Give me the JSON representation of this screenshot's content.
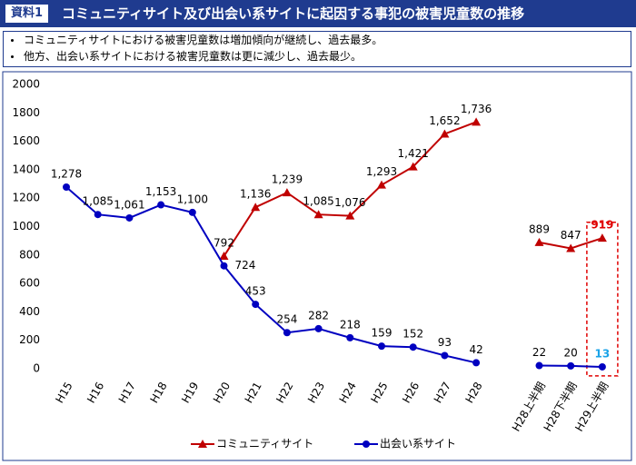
{
  "header": {
    "badge": "資料1",
    "title": "コミュニティサイト及び出会い系サイトに起因する事犯の被害児童数の推移"
  },
  "notes": [
    "コミュニティサイトにおける被害児童数は増加傾向が継続し、過去最多。",
    "他方、出会い系サイトにおける被害児童数は更に減少し、過去最少。"
  ],
  "chart_data": {
    "type": "line",
    "categories": [
      "H15",
      "H16",
      "H17",
      "H18",
      "H19",
      "H20",
      "H21",
      "H22",
      "H23",
      "H24",
      "H25",
      "H26",
      "H27",
      "H28",
      null,
      "H28上半期",
      "H28下半期",
      "H29上半期"
    ],
    "series": [
      {
        "name": "コミュニティサイト",
        "color": "#c00000",
        "marker": "triangle",
        "values": [
          null,
          null,
          null,
          null,
          null,
          792,
          1136,
          1239,
          1085,
          1076,
          1293,
          1421,
          1652,
          1736,
          null,
          889,
          847,
          919
        ],
        "value_labels": [
          null,
          null,
          null,
          null,
          null,
          "792",
          "1,136",
          "1,239",
          "1,085",
          "1,076",
          "1,293",
          "1,421",
          "1,652",
          "1,736",
          null,
          "889",
          "847",
          "919"
        ]
      },
      {
        "name": "出会い系サイト",
        "color": "#0000c0",
        "marker": "circle",
        "values": [
          1278,
          1085,
          1061,
          1153,
          1100,
          724,
          453,
          254,
          282,
          218,
          159,
          152,
          93,
          42,
          null,
          22,
          20,
          13
        ],
        "value_labels": [
          "1,278",
          "1,085",
          "1,061",
          "1,153",
          "1,100",
          "724",
          "453",
          "254",
          "282",
          "218",
          "159",
          "152",
          "93",
          "42",
          null,
          "22",
          "20",
          "13"
        ]
      }
    ],
    "ylim": [
      0,
      2000
    ],
    "yticks": [
      0,
      200,
      400,
      600,
      800,
      1000,
      1200,
      1400,
      1600,
      1800,
      2000
    ],
    "grid": false,
    "legend": "bottom"
  }
}
